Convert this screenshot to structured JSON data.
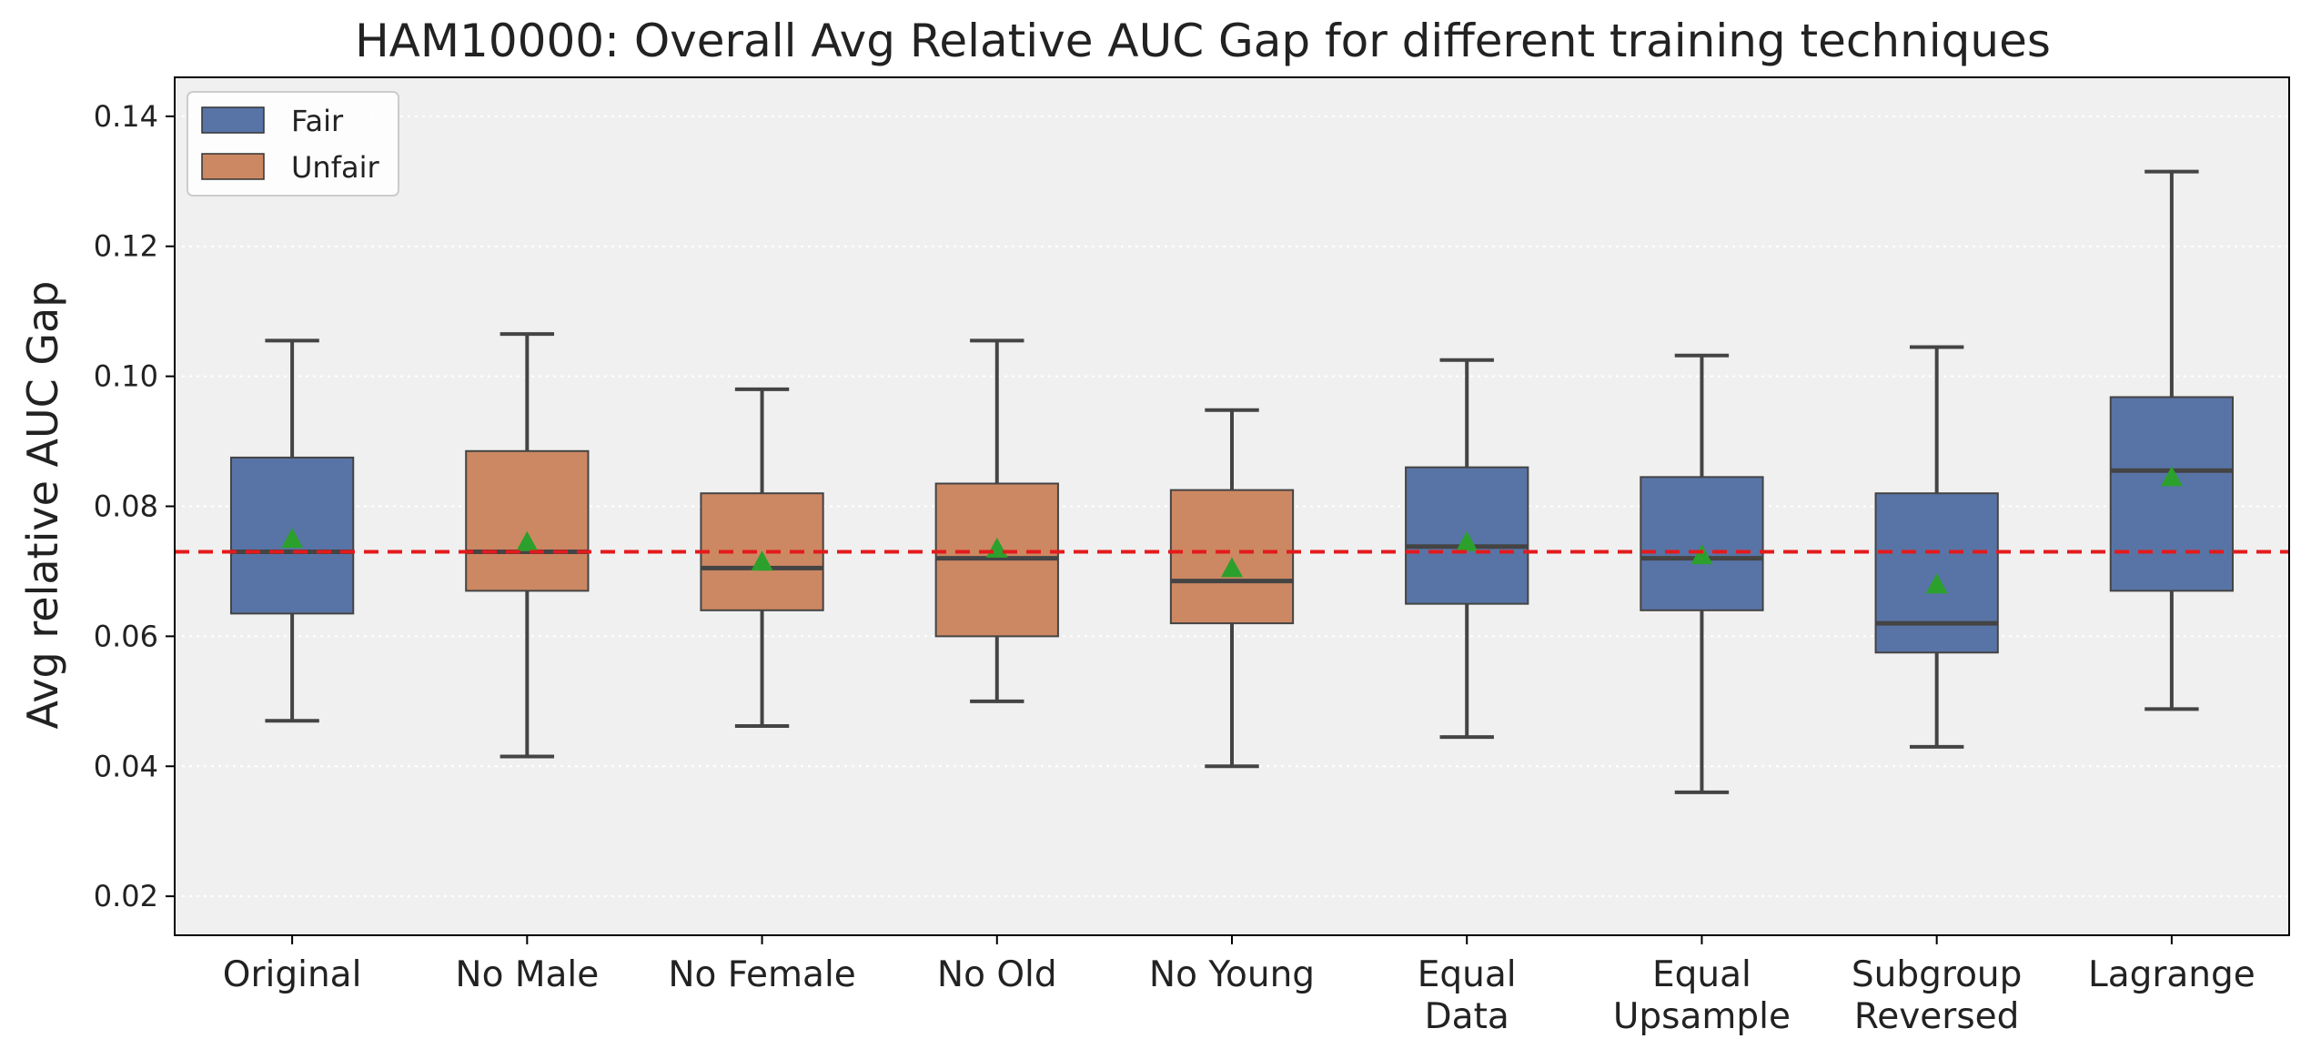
{
  "chart_data": {
    "type": "box",
    "title": "HAM10000: Overall Avg Relative AUC Gap for different training techniques",
    "xlabel": "",
    "ylabel": "Avg relative AUC Gap",
    "ylim": [
      0.014,
      0.146
    ],
    "yticks": [
      0.02,
      0.04,
      0.06,
      0.08,
      0.1,
      0.12,
      0.14
    ],
    "ytick_labels": [
      "0.02",
      "0.04",
      "0.06",
      "0.08",
      "0.10",
      "0.12",
      "0.14"
    ],
    "grid": "horizontal dotted",
    "legend_position": "top-left",
    "reference_line": {
      "y": 0.073,
      "color": "#e31a1c",
      "style": "dashed"
    },
    "legend": [
      {
        "label": "Fair",
        "color": "#5874a6"
      },
      {
        "label": "Unfair",
        "color": "#cc8862"
      }
    ],
    "categories": [
      {
        "label_lines": [
          "Original"
        ],
        "group": "Fair",
        "whisker_low": 0.047,
        "q1": 0.0635,
        "median": 0.073,
        "q3": 0.0875,
        "whisker_high": 0.1055,
        "mean": 0.075
      },
      {
        "label_lines": [
          "No Male"
        ],
        "group": "Unfair",
        "whisker_low": 0.0415,
        "q1": 0.067,
        "median": 0.073,
        "q3": 0.0885,
        "whisker_high": 0.1065,
        "mean": 0.0745
      },
      {
        "label_lines": [
          "No Female"
        ],
        "group": "Unfair",
        "whisker_low": 0.0462,
        "q1": 0.064,
        "median": 0.0705,
        "q3": 0.082,
        "whisker_high": 0.098,
        "mean": 0.0715
      },
      {
        "label_lines": [
          "No Old"
        ],
        "group": "Unfair",
        "whisker_low": 0.05,
        "q1": 0.06,
        "median": 0.072,
        "q3": 0.0835,
        "whisker_high": 0.1055,
        "mean": 0.0735
      },
      {
        "label_lines": [
          "No Young"
        ],
        "group": "Unfair",
        "whisker_low": 0.04,
        "q1": 0.062,
        "median": 0.0685,
        "q3": 0.0825,
        "whisker_high": 0.0948,
        "mean": 0.0705
      },
      {
        "label_lines": [
          "Equal",
          "Data"
        ],
        "group": "Fair",
        "whisker_low": 0.0445,
        "q1": 0.065,
        "median": 0.0738,
        "q3": 0.086,
        "whisker_high": 0.1025,
        "mean": 0.0745
      },
      {
        "label_lines": [
          "Equal",
          "Upsample"
        ],
        "group": "Fair",
        "whisker_low": 0.036,
        "q1": 0.064,
        "median": 0.072,
        "q3": 0.0845,
        "whisker_high": 0.1032,
        "mean": 0.0725
      },
      {
        "label_lines": [
          "Subgroup",
          "Reversed"
        ],
        "group": "Fair",
        "whisker_low": 0.043,
        "q1": 0.0575,
        "median": 0.062,
        "q3": 0.082,
        "whisker_high": 0.1045,
        "mean": 0.068
      },
      {
        "label_lines": [
          "Lagrange"
        ],
        "group": "Fair",
        "whisker_low": 0.0488,
        "q1": 0.067,
        "median": 0.0855,
        "q3": 0.0968,
        "whisker_high": 0.1315,
        "mean": 0.0845
      }
    ]
  }
}
